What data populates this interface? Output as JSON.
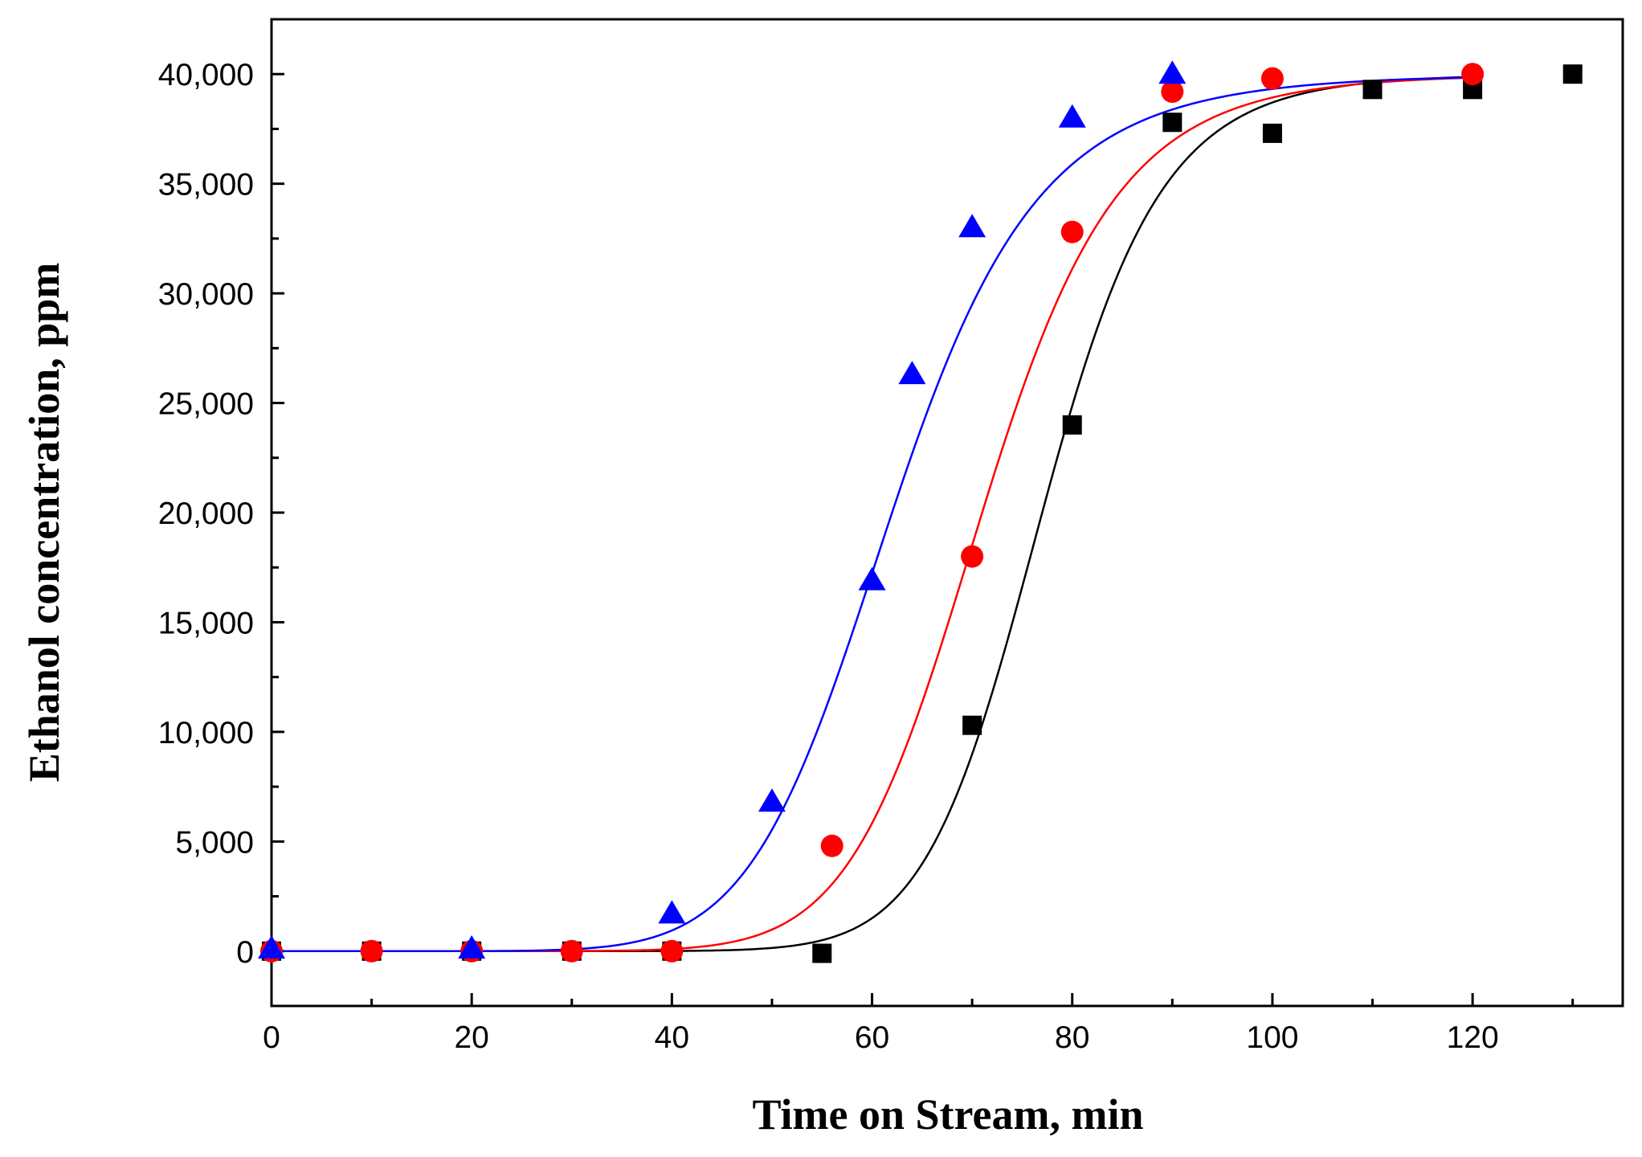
{
  "chart_data": {
    "type": "scatter",
    "title": "",
    "xlabel": "Time on Stream, min",
    "ylabel": "Ethanol concentration, ppm",
    "xlim": [
      0,
      135
    ],
    "ylim": [
      -2500,
      42500
    ],
    "x_ticks": [
      0,
      20,
      40,
      60,
      80,
      100,
      120
    ],
    "x_minor_step": 10,
    "y_ticks": [
      0,
      5000,
      10000,
      15000,
      20000,
      25000,
      30000,
      35000,
      40000
    ],
    "y_tick_labels": [
      "0",
      "5,000",
      "10,000",
      "15,000",
      "20,000",
      "25,000",
      "30,000",
      "35,000",
      "40,000"
    ],
    "y_minor_step": 2500,
    "grid": false,
    "legend": "none",
    "series": [
      {
        "name": "black squares",
        "color": "#000000",
        "marker": "square",
        "x": [
          0,
          10,
          20,
          30,
          40,
          55,
          70,
          80,
          90,
          100,
          110,
          120,
          130
        ],
        "y": [
          0,
          0,
          0,
          0,
          0,
          -100,
          10300,
          24000,
          37800,
          37300,
          39300,
          39300,
          40000
        ],
        "fit": {
          "model": "logistic",
          "A1": 0,
          "A2": 40000,
          "x0": 77,
          "p": 13
        }
      },
      {
        "name": "red circles",
        "color": "#ff0000",
        "marker": "circle",
        "x": [
          0,
          10,
          20,
          30,
          40,
          56,
          70,
          80,
          90,
          100,
          120
        ],
        "y": [
          0,
          0,
          0,
          0,
          0,
          4800,
          18000,
          32800,
          39200,
          39800,
          40000
        ],
        "fit": {
          "model": "logistic",
          "A1": 0,
          "A2": 40000,
          "x0": 71,
          "p": 10.5
        }
      },
      {
        "name": "blue triangles",
        "color": "#0000ff",
        "marker": "triangle",
        "x": [
          0,
          20,
          40,
          50,
          60,
          64,
          70,
          80,
          90
        ],
        "y": [
          100,
          100,
          1700,
          6800,
          16900,
          26300,
          33000,
          38000,
          40000
        ],
        "fit": {
          "model": "logistic",
          "A1": 0,
          "A2": 40000,
          "x0": 62,
          "p": 8.5
        }
      }
    ]
  }
}
